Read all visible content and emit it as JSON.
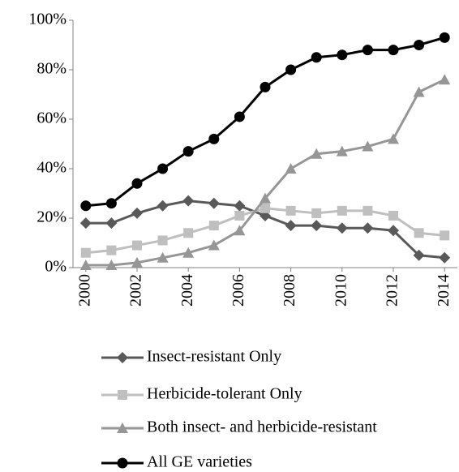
{
  "chart_data": {
    "type": "line",
    "x": [
      2000,
      2001,
      2002,
      2003,
      2004,
      2005,
      2006,
      2007,
      2008,
      2009,
      2010,
      2011,
      2012,
      2013,
      2014
    ],
    "xlim": [
      1999.5,
      2014.5
    ],
    "xticks": [
      2000,
      2002,
      2004,
      2006,
      2008,
      2010,
      2012,
      2014
    ],
    "ylim": [
      0,
      100
    ],
    "yticks": [
      {
        "value": 0,
        "label": "0%"
      },
      {
        "value": 20,
        "label": "20%"
      },
      {
        "value": 40,
        "label": "40%"
      },
      {
        "value": 60,
        "label": "60%"
      },
      {
        "value": 80,
        "label": "80%"
      },
      {
        "value": 100,
        "label": "100%"
      }
    ],
    "legend": "bottom",
    "series": [
      {
        "name": "Insect-resistant Only",
        "color": "#595959",
        "marker": "diamond",
        "values": [
          18,
          18,
          22,
          25,
          27,
          26,
          25,
          21,
          17,
          17,
          16,
          16,
          15,
          5,
          4
        ]
      },
      {
        "name": "Herbicide-tolerant Only",
        "color": "#bfbfbf",
        "marker": "square",
        "values": [
          6,
          7,
          9,
          11,
          14,
          17,
          21,
          24,
          23,
          22,
          23,
          23,
          21,
          14,
          13
        ]
      },
      {
        "name": "Both insect- and herbicide-resistant",
        "color": "#969696",
        "marker": "triangle",
        "values": [
          1,
          1,
          2,
          4,
          6,
          9,
          15,
          28,
          40,
          46,
          47,
          49,
          52,
          71,
          76
        ]
      },
      {
        "name": "All GE varieties",
        "color": "#000000",
        "marker": "circle",
        "values": [
          25,
          26,
          34,
          40,
          47,
          52,
          61,
          73,
          80,
          85,
          86,
          88,
          88,
          90,
          93
        ]
      }
    ]
  }
}
